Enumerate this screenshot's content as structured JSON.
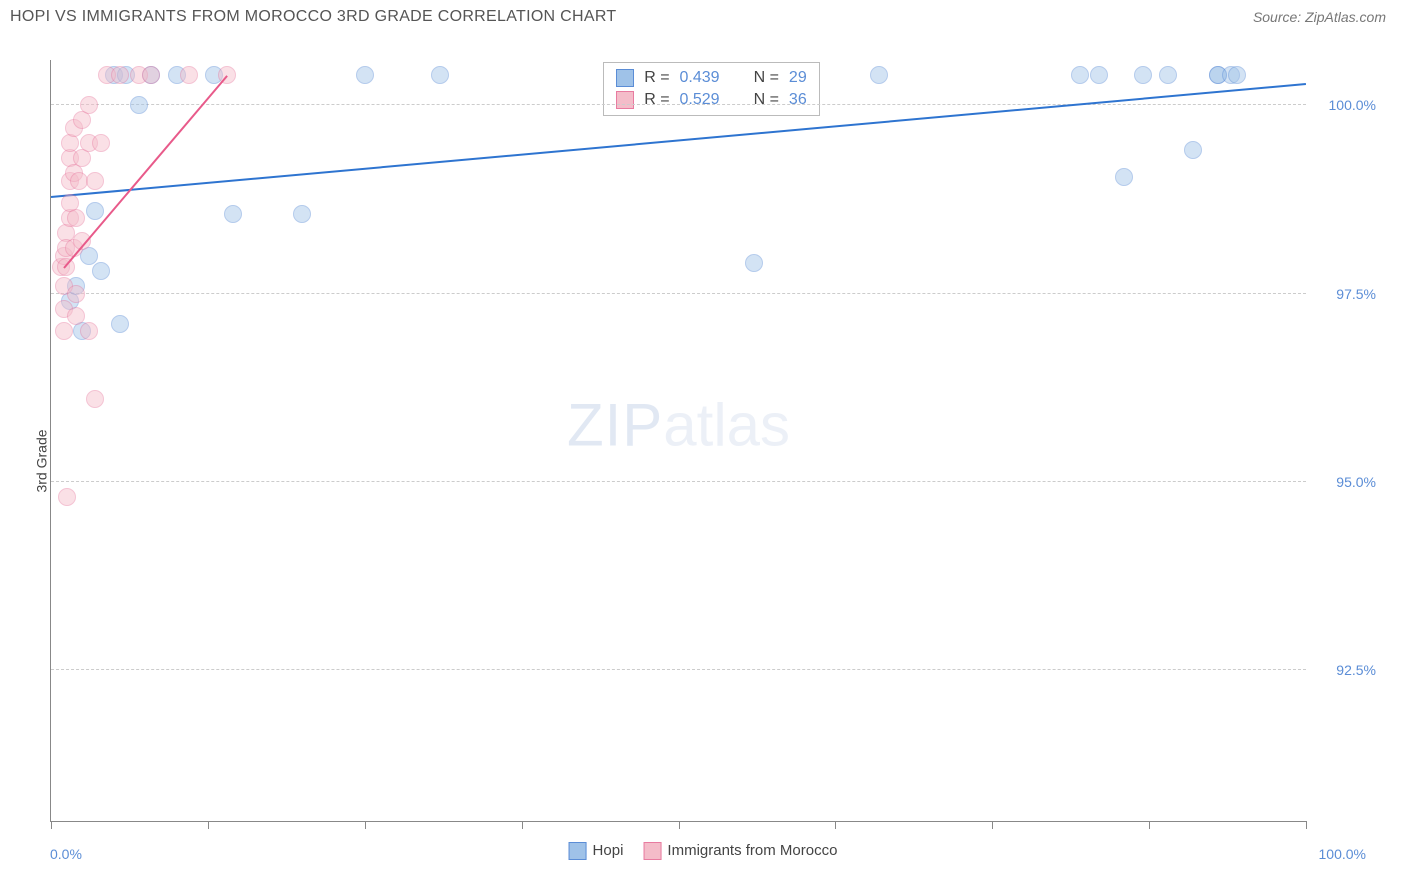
{
  "header": {
    "title": "HOPI VS IMMIGRANTS FROM MOROCCO 3RD GRADE CORRELATION CHART",
    "source": "Source: ZipAtlas.com"
  },
  "watermark": {
    "part1": "ZIP",
    "part2": "atlas"
  },
  "chart": {
    "type": "scatter",
    "ylabel": "3rd Grade",
    "xlim": [
      0,
      100
    ],
    "ylim": [
      90.5,
      100.6
    ],
    "x_ticks": [
      0,
      12.5,
      25,
      37.5,
      50,
      62.5,
      75,
      87.5,
      100
    ],
    "y_ticks": [
      92.5,
      95.0,
      97.5,
      100.0
    ],
    "y_tick_labels": [
      "92.5%",
      "95.0%",
      "97.5%",
      "100.0%"
    ],
    "x_min_label": "0.0%",
    "x_max_label": "100.0%",
    "grid_color": "#cccccc",
    "background_color": "#ffffff",
    "point_radius": 9,
    "point_opacity": 0.45,
    "series": [
      {
        "name": "Hopi",
        "color_fill": "#9fc2e8",
        "color_stroke": "#5b8dd6",
        "trend_color": "#2e74d0",
        "r": "0.439",
        "n": "29",
        "trend": {
          "x1": 0,
          "y1": 98.8,
          "x2": 100,
          "y2": 100.3
        },
        "points": [
          {
            "x": 1.5,
            "y": 97.4
          },
          {
            "x": 2.0,
            "y": 97.6
          },
          {
            "x": 2.5,
            "y": 97.0
          },
          {
            "x": 3.0,
            "y": 98.0
          },
          {
            "x": 3.5,
            "y": 98.6
          },
          {
            "x": 4.0,
            "y": 97.8
          },
          {
            "x": 5.0,
            "y": 100.4
          },
          {
            "x": 5.5,
            "y": 97.1
          },
          {
            "x": 6.0,
            "y": 100.4
          },
          {
            "x": 7.0,
            "y": 100.0
          },
          {
            "x": 8.0,
            "y": 100.4
          },
          {
            "x": 10.0,
            "y": 100.4
          },
          {
            "x": 13.0,
            "y": 100.4
          },
          {
            "x": 14.5,
            "y": 98.55
          },
          {
            "x": 20.0,
            "y": 98.55
          },
          {
            "x": 25.0,
            "y": 100.4
          },
          {
            "x": 31.0,
            "y": 100.4
          },
          {
            "x": 56.0,
            "y": 97.9
          },
          {
            "x": 66.0,
            "y": 100.4
          },
          {
            "x": 82.0,
            "y": 100.4
          },
          {
            "x": 83.5,
            "y": 100.4
          },
          {
            "x": 85.5,
            "y": 99.05
          },
          {
            "x": 87.0,
            "y": 100.4
          },
          {
            "x": 89.0,
            "y": 100.4
          },
          {
            "x": 91.0,
            "y": 99.4
          },
          {
            "x": 93.0,
            "y": 100.4
          },
          {
            "x": 93.0,
            "y": 100.4
          },
          {
            "x": 94.0,
            "y": 100.4
          },
          {
            "x": 94.5,
            "y": 100.4
          }
        ]
      },
      {
        "name": "Immigrants from Morocco",
        "color_fill": "#f4bcc9",
        "color_stroke": "#e87ba0",
        "trend_color": "#e85a8a",
        "r": "0.529",
        "n": "36",
        "trend": {
          "x1": 1,
          "y1": 97.85,
          "x2": 14,
          "y2": 100.4
        },
        "points": [
          {
            "x": 0.8,
            "y": 97.85
          },
          {
            "x": 1.0,
            "y": 98.0
          },
          {
            "x": 1.0,
            "y": 97.6
          },
          {
            "x": 1.0,
            "y": 97.3
          },
          {
            "x": 1.0,
            "y": 97.0
          },
          {
            "x": 1.2,
            "y": 98.3
          },
          {
            "x": 1.2,
            "y": 98.1
          },
          {
            "x": 1.2,
            "y": 97.85
          },
          {
            "x": 1.3,
            "y": 94.8
          },
          {
            "x": 1.5,
            "y": 98.5
          },
          {
            "x": 1.5,
            "y": 98.7
          },
          {
            "x": 1.5,
            "y": 99.0
          },
          {
            "x": 1.5,
            "y": 99.3
          },
          {
            "x": 1.5,
            "y": 99.5
          },
          {
            "x": 1.8,
            "y": 98.1
          },
          {
            "x": 1.8,
            "y": 99.1
          },
          {
            "x": 1.8,
            "y": 99.7
          },
          {
            "x": 2.0,
            "y": 98.5
          },
          {
            "x": 2.0,
            "y": 97.2
          },
          {
            "x": 2.0,
            "y": 97.5
          },
          {
            "x": 2.2,
            "y": 99.0
          },
          {
            "x": 2.5,
            "y": 98.2
          },
          {
            "x": 2.5,
            "y": 99.3
          },
          {
            "x": 2.5,
            "y": 99.8
          },
          {
            "x": 3.0,
            "y": 97.0
          },
          {
            "x": 3.0,
            "y": 99.5
          },
          {
            "x": 3.0,
            "y": 100.0
          },
          {
            "x": 3.5,
            "y": 96.1
          },
          {
            "x": 3.5,
            "y": 99.0
          },
          {
            "x": 4.0,
            "y": 99.5
          },
          {
            "x": 4.5,
            "y": 100.4
          },
          {
            "x": 5.5,
            "y": 100.4
          },
          {
            "x": 7.0,
            "y": 100.4
          },
          {
            "x": 8.0,
            "y": 100.4
          },
          {
            "x": 11.0,
            "y": 100.4
          },
          {
            "x": 14.0,
            "y": 100.4
          }
        ]
      }
    ]
  },
  "legend": {
    "items": [
      {
        "label": "Hopi",
        "fill": "#9fc2e8",
        "stroke": "#5b8dd6"
      },
      {
        "label": "Immigrants from Morocco",
        "fill": "#f4bcc9",
        "stroke": "#e87ba0"
      }
    ]
  }
}
